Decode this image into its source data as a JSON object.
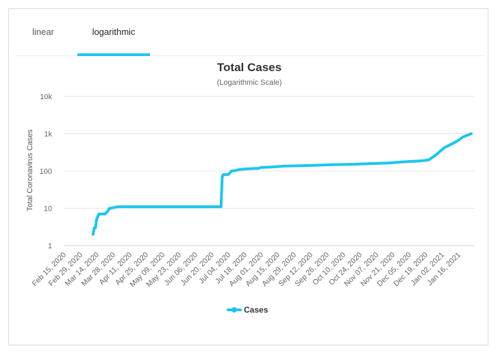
{
  "tabs": [
    {
      "label": "linear",
      "active": false
    },
    {
      "label": "logarithmic",
      "active": true
    }
  ],
  "colors": {
    "accent": "#26c5ec",
    "series": "#1cc6ee",
    "grid": "#e6e6e6"
  },
  "chart_data": {
    "type": "line",
    "title": "Total Cases",
    "subtitle": "(Logarithmic Scale)",
    "xlabel": "",
    "ylabel": "Total Coronavirus Cases",
    "yscale": "log",
    "ylim": [
      1,
      10000
    ],
    "yticks": [
      1,
      10,
      100,
      1000,
      10000
    ],
    "ytick_labels": [
      "1",
      "10",
      "100",
      "1k",
      "10k"
    ],
    "xlim": [
      "2020-02-15",
      "2021-01-30"
    ],
    "xtick_labels": [
      "Feb 15, 2020",
      "Feb 29, 2020",
      "Mar 14, 2020",
      "Mar 28, 2020",
      "Apr 11, 2020",
      "Apr 25, 2020",
      "May 09, 2020",
      "May 23, 2020",
      "Jun 06, 2020",
      "Jun 20, 2020",
      "Jul 04, 2020",
      "Jul 18, 2020",
      "Aug 01, 2020",
      "Aug 15, 2020",
      "Aug 29, 2020",
      "Sep 12, 2020",
      "Sep 26, 2020",
      "Oct 10, 2020",
      "Oct 24, 2020",
      "Nov 07, 2020",
      "Nov 21, 2020",
      "Dec 05, 2020",
      "Dec 19, 2020",
      "Jan 02, 2021",
      "Jan 16, 2021"
    ],
    "grid": true,
    "legend": "bottom-center",
    "series": [
      {
        "name": "Cases",
        "x": [
          "2020-03-11",
          "2020-03-12",
          "2020-03-13",
          "2020-03-14",
          "2020-03-15",
          "2020-03-16",
          "2020-03-18",
          "2020-03-21",
          "2020-03-23",
          "2020-03-25",
          "2020-03-26",
          "2020-04-01",
          "2020-06-28",
          "2020-06-29",
          "2020-06-30",
          "2020-07-04",
          "2020-07-07",
          "2020-07-10",
          "2020-07-14",
          "2020-07-21",
          "2020-07-30",
          "2020-08-01",
          "2020-08-10",
          "2020-08-20",
          "2020-09-10",
          "2020-10-01",
          "2020-10-20",
          "2020-11-01",
          "2020-11-20",
          "2020-11-25",
          "2020-12-05",
          "2020-12-10",
          "2020-12-15",
          "2020-12-20",
          "2020-12-22",
          "2020-12-28",
          "2021-01-04",
          "2021-01-12",
          "2021-01-16",
          "2021-01-20",
          "2021-01-24",
          "2021-01-27"
        ],
        "y": [
          2,
          3,
          3,
          5,
          6,
          7,
          7,
          7,
          8,
          10,
          10,
          11,
          11,
          70,
          80,
          80,
          100,
          102,
          110,
          115,
          118,
          125,
          128,
          135,
          140,
          148,
          152,
          158,
          165,
          172,
          180,
          183,
          187,
          195,
          200,
          270,
          420,
          560,
          660,
          820,
          920,
          1000
        ]
      }
    ]
  }
}
